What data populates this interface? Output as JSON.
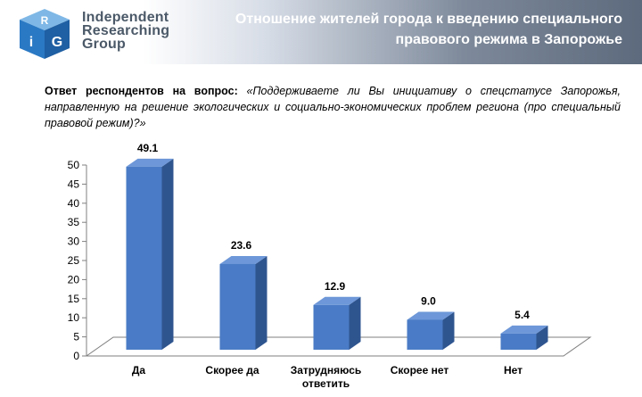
{
  "header": {
    "logo_lines": [
      "Independent",
      "Researching",
      "Group"
    ],
    "logo_letters": [
      "i",
      "R",
      "G"
    ],
    "title_lines": [
      "Отношение жителей города к введению специального",
      "правового режима в Запорожье"
    ]
  },
  "question": {
    "lead": "Ответ респондентов на вопрос:",
    "text": "«Поддерживаете ли Вы инициативу о спецстатусе Запорожья, направленную на решение экологических и социально-экономических проблем региона (про специальный правовой режим)?»"
  },
  "chart_data": {
    "type": "bar",
    "categories": [
      "Да",
      "Скорее да",
      "Затрудняюсь ответить",
      "Скорее нет",
      "Нет"
    ],
    "values": [
      49.1,
      23.6,
      12.9,
      9.0,
      5.4
    ],
    "value_labels": [
      "49.1",
      "23.6",
      "12.9",
      "9.0",
      "5.4"
    ],
    "title": "",
    "xlabel": "",
    "ylabel": "",
    "ylim": [
      0,
      50
    ],
    "yticks": [
      0,
      5,
      10,
      15,
      20,
      25,
      30,
      35,
      40,
      45,
      50
    ],
    "grid": false,
    "legend": "none",
    "style": "3d",
    "colors": {
      "bar_front": "#4a7bc6",
      "bar_side": "#2f558f",
      "bar_top": "#6d97d8",
      "axis": "#7f7f7f"
    }
  }
}
